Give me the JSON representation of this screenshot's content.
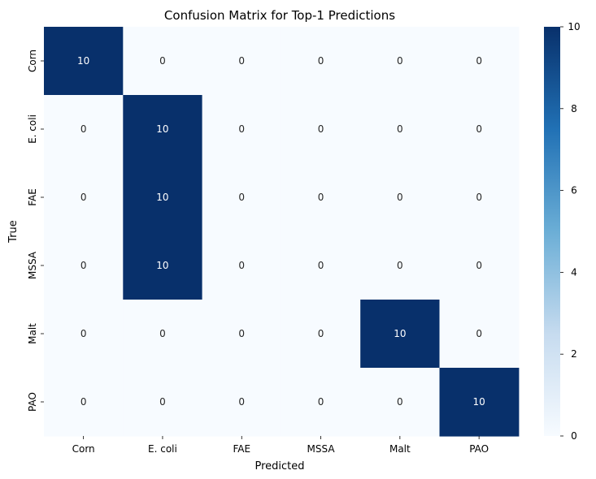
{
  "chart_data": {
    "type": "heatmap",
    "title": "Confusion Matrix for Top-1 Predictions",
    "xlabel": "Predicted",
    "ylabel": "True",
    "x_categories": [
      "Corn",
      "E. coli",
      "FAE",
      "MSSA",
      "Malt",
      "PAO"
    ],
    "y_categories": [
      "Corn",
      "E. coli",
      "FAE",
      "MSSA",
      "Malt",
      "PAO"
    ],
    "values": [
      [
        10,
        0,
        0,
        0,
        0,
        0
      ],
      [
        0,
        10,
        0,
        0,
        0,
        0
      ],
      [
        0,
        10,
        0,
        0,
        0,
        0
      ],
      [
        0,
        10,
        0,
        0,
        0,
        0
      ],
      [
        0,
        0,
        0,
        0,
        10,
        0
      ],
      [
        0,
        0,
        0,
        0,
        0,
        10
      ]
    ],
    "colorbar": {
      "min": 0,
      "max": 10,
      "ticks": [
        0,
        2,
        4,
        6,
        8,
        10
      ]
    },
    "colormap": {
      "low": "#f7fbff",
      "high": "#08306b"
    },
    "annotation_colors": {
      "dark_cell": "#ffffff",
      "light_cell": "#262626"
    },
    "grid": false
  }
}
